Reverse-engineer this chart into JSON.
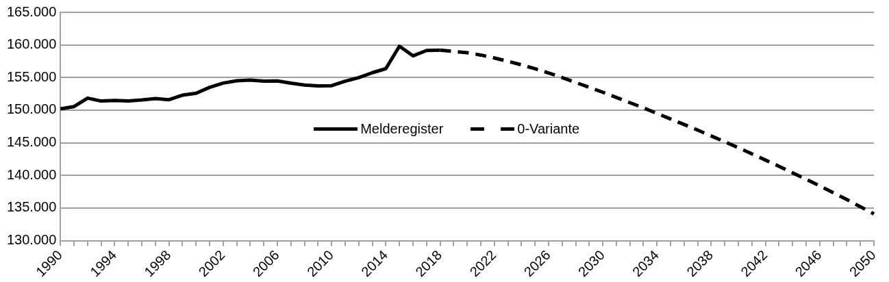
{
  "chart_data": {
    "type": "line",
    "categories": [
      "1990",
      null,
      null,
      null,
      "1994",
      null,
      null,
      null,
      "1998",
      null,
      null,
      null,
      "2002",
      null,
      null,
      null,
      "2006",
      null,
      null,
      null,
      "2010",
      null,
      null,
      null,
      "2014",
      null,
      null,
      null,
      "2018",
      null,
      null,
      null,
      "2022",
      null,
      null,
      null,
      "2026",
      null,
      null,
      null,
      "2030",
      null,
      null,
      null,
      "2034",
      null,
      null,
      null,
      "2038",
      null,
      null,
      null,
      "2042",
      null,
      null,
      null,
      "2046",
      null,
      null,
      null,
      "2050"
    ],
    "series": [
      {
        "name": "Melderegister",
        "color": "#000000",
        "line_style": "solid",
        "values": [
          150200,
          150550,
          151850,
          151400,
          151480,
          151420,
          151560,
          151780,
          151600,
          152300,
          152600,
          153500,
          154150,
          154500,
          154600,
          154450,
          154480,
          154150,
          153850,
          153720,
          153750,
          154440,
          155000,
          155740,
          156370,
          159800,
          158330,
          159150,
          159200,
          null,
          null,
          null,
          null,
          null,
          null,
          null,
          null,
          null,
          null,
          null,
          null,
          null,
          null,
          null,
          null,
          null,
          null,
          null,
          null,
          null,
          null,
          null,
          null,
          null,
          null,
          null,
          null,
          null,
          null,
          null,
          null
        ]
      },
      {
        "name": "0-Variante",
        "color": "#000000",
        "line_style": "dashed",
        "values": [
          null,
          null,
          null,
          null,
          null,
          null,
          null,
          null,
          null,
          null,
          null,
          null,
          null,
          null,
          null,
          null,
          null,
          null,
          null,
          null,
          null,
          null,
          null,
          null,
          null,
          null,
          null,
          null,
          159200,
          159000,
          158800,
          158450,
          158000,
          157500,
          156950,
          156350,
          155700,
          155000,
          154250,
          153500,
          152750,
          151950,
          151150,
          150350,
          149500,
          148650,
          147800,
          146950,
          146050,
          145150,
          144250,
          143300,
          142350,
          141400,
          140400,
          139400,
          138400,
          137350,
          136300,
          135200,
          134100
        ]
      }
    ],
    "ylim": [
      130000,
      165000
    ],
    "yticks": [
      {
        "value": 130000,
        "label": "130.000"
      },
      {
        "value": 135000,
        "label": "135.000"
      },
      {
        "value": 140000,
        "label": "140.000"
      },
      {
        "value": 145000,
        "label": "145.000"
      },
      {
        "value": 150000,
        "label": "150.000"
      },
      {
        "value": 155000,
        "label": "155.000"
      },
      {
        "value": 160000,
        "label": "160.000"
      },
      {
        "value": 165000,
        "label": "165.000"
      }
    ],
    "grid": "y",
    "legend": "center",
    "marker": "none"
  }
}
